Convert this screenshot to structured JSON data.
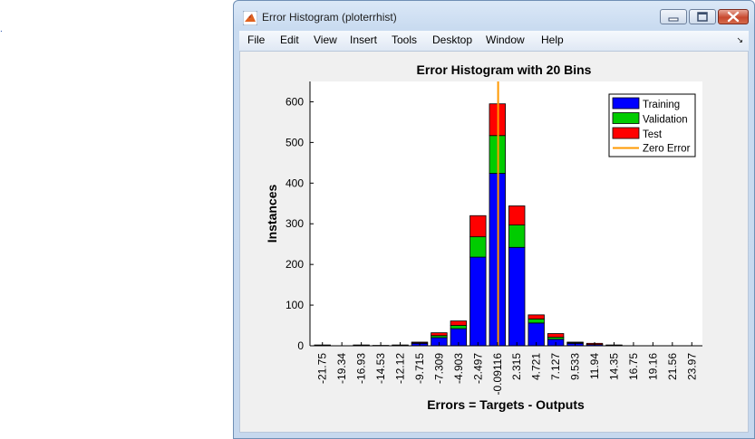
{
  "desktop": {
    "marker": "."
  },
  "window": {
    "title": "Error Histogram (ploterrhist)",
    "menu": [
      "File",
      "Edit",
      "View",
      "Insert",
      "Tools",
      "Desktop",
      "Window",
      "Help"
    ],
    "dock_glyph": "↘"
  },
  "chart_data": {
    "type": "bar",
    "stacked": true,
    "title": "Error Histogram with 20 Bins",
    "xlabel": "Errors = Targets - Outputs",
    "ylabel": "Instances",
    "ylim": [
      0,
      650
    ],
    "yticks": [
      0,
      100,
      200,
      300,
      400,
      500,
      600
    ],
    "categories": [
      "-21.75",
      "-19.34",
      "-16.93",
      "-14.53",
      "-12.12",
      "-9.715",
      "-7.309",
      "-4.903",
      "-2.497",
      "-0.09116",
      "2.315",
      "4.721",
      "7.127",
      "9.533",
      "11.94",
      "14.35",
      "16.75",
      "19.16",
      "21.56",
      "23.97"
    ],
    "series": [
      {
        "name": "Training",
        "color": "#0000ff",
        "values": [
          1,
          0,
          1,
          0,
          1,
          6,
          20,
          42,
          218,
          424,
          242,
          56,
          16,
          6,
          3,
          1,
          0,
          0,
          0,
          0
        ]
      },
      {
        "name": "Validation",
        "color": "#00cc00",
        "values": [
          0,
          0,
          0,
          0,
          0,
          1,
          5,
          8,
          50,
          93,
          55,
          10,
          5,
          2,
          0,
          0,
          0,
          0,
          0,
          0
        ]
      },
      {
        "name": "Test",
        "color": "#ff0000",
        "values": [
          1,
          0,
          1,
          1,
          1,
          2,
          7,
          11,
          52,
          78,
          47,
          10,
          9,
          1,
          3,
          1,
          0,
          0,
          0,
          0
        ]
      }
    ],
    "reference_line": {
      "name": "Zero Error",
      "x": 0,
      "color": "#ff9900"
    },
    "legend_position": "top-right",
    "grid": false
  }
}
